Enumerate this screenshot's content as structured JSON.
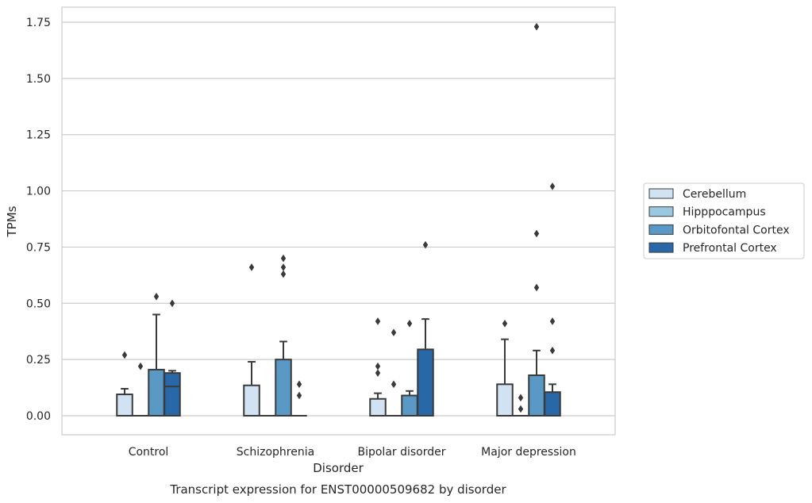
{
  "caption": "Transcript expression for ENST00000509682 by disorder",
  "chart_data": {
    "type": "box",
    "title": "",
    "xlabel": "Disorder",
    "ylabel": "TPMs",
    "ylim": [
      -0.08,
      1.82
    ],
    "yticks": [
      0.0,
      0.25,
      0.5,
      0.75,
      1.0,
      1.25,
      1.5,
      1.75
    ],
    "ytick_labels": [
      "0.00",
      "0.25",
      "0.50",
      "0.75",
      "1.00",
      "1.25",
      "1.50",
      "1.75"
    ],
    "grid": "horizontal",
    "legend_position": "right",
    "categories": [
      "Control",
      "Schizophrenia",
      "Bipolar disorder",
      "Major depression"
    ],
    "series": [
      {
        "name": "Cerebellum",
        "color": "#d1e2f2",
        "boxes": [
          {
            "q1": 0.0,
            "median": 0.0,
            "q3": 0.095,
            "whisker_low": 0.0,
            "whisker_high": 0.12,
            "outliers": [
              0.27
            ]
          },
          {
            "q1": 0.0,
            "median": 0.0,
            "q3": 0.135,
            "whisker_low": 0.0,
            "whisker_high": 0.24,
            "outliers": [
              0.66
            ]
          },
          {
            "q1": 0.0,
            "median": 0.0,
            "q3": 0.075,
            "whisker_low": 0.0,
            "whisker_high": 0.1,
            "outliers": [
              0.19,
              0.22,
              0.42
            ]
          },
          {
            "q1": 0.0,
            "median": 0.0,
            "q3": 0.14,
            "whisker_low": 0.0,
            "whisker_high": 0.34,
            "outliers": [
              0.41
            ]
          }
        ]
      },
      {
        "name": "Hipppocampus",
        "color": "#9ac8e0",
        "boxes": [
          {
            "q1": 0.0,
            "median": 0.0,
            "q3": 0.0,
            "whisker_low": 0.0,
            "whisker_high": 0.0,
            "outliers": [
              0.22
            ]
          },
          {
            "q1": 0.0,
            "median": 0.0,
            "q3": 0.0,
            "whisker_low": 0.0,
            "whisker_high": 0.0,
            "outliers": []
          },
          {
            "q1": 0.0,
            "median": 0.0,
            "q3": 0.0,
            "whisker_low": 0.0,
            "whisker_high": 0.0,
            "outliers": [
              0.14,
              0.37
            ]
          },
          {
            "q1": 0.0,
            "median": 0.0,
            "q3": 0.0,
            "whisker_low": 0.0,
            "whisker_high": 0.0,
            "outliers": [
              0.03,
              0.08
            ]
          }
        ]
      },
      {
        "name": "Orbitofontal Cortex",
        "color": "#5a98c6",
        "boxes": [
          {
            "q1": 0.0,
            "median": 0.0,
            "q3": 0.205,
            "whisker_low": 0.0,
            "whisker_high": 0.45,
            "outliers": [
              0.53
            ]
          },
          {
            "q1": 0.0,
            "median": 0.0,
            "q3": 0.25,
            "whisker_low": 0.0,
            "whisker_high": 0.33,
            "outliers": [
              0.63,
              0.66,
              0.7
            ]
          },
          {
            "q1": 0.0,
            "median": 0.0,
            "q3": 0.09,
            "whisker_low": 0.0,
            "whisker_high": 0.11,
            "outliers": [
              0.41
            ]
          },
          {
            "q1": 0.0,
            "median": 0.0,
            "q3": 0.18,
            "whisker_low": 0.0,
            "whisker_high": 0.29,
            "outliers": [
              0.57,
              0.81,
              1.73
            ]
          }
        ]
      },
      {
        "name": "Prefrontal Cortex",
        "color": "#2868a9",
        "boxes": [
          {
            "q1": 0.0,
            "median": 0.13,
            "q3": 0.19,
            "whisker_low": 0.0,
            "whisker_high": 0.2,
            "outliers": [
              0.5
            ]
          },
          {
            "q1": 0.0,
            "median": 0.0,
            "q3": 0.0,
            "whisker_low": 0.0,
            "whisker_high": 0.0,
            "outliers": [
              0.09,
              0.14
            ]
          },
          {
            "q1": 0.0,
            "median": 0.0,
            "q3": 0.295,
            "whisker_low": 0.0,
            "whisker_high": 0.43,
            "outliers": [
              0.76
            ]
          },
          {
            "q1": 0.0,
            "median": 0.0,
            "q3": 0.105,
            "whisker_low": 0.0,
            "whisker_high": 0.14,
            "outliers": [
              0.29,
              0.42,
              1.02
            ]
          }
        ]
      }
    ]
  }
}
